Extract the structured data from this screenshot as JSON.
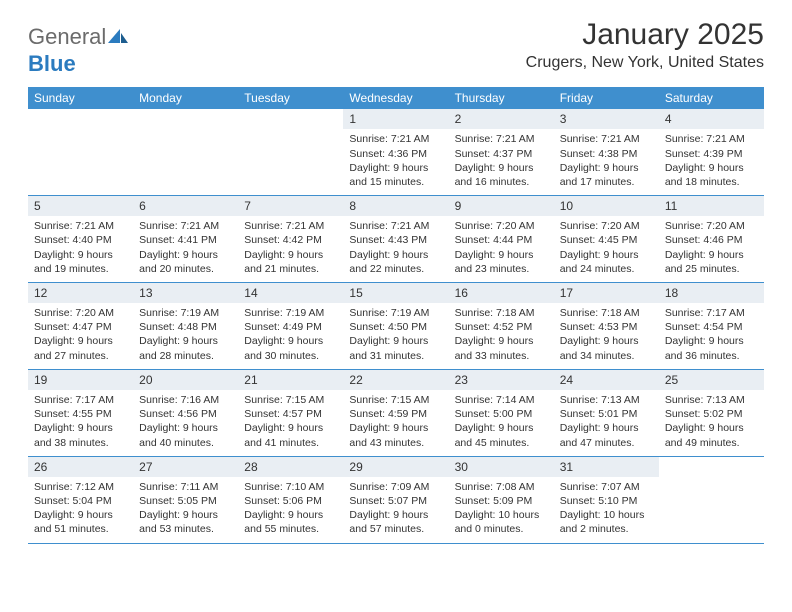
{
  "logo": {
    "general": "General",
    "blue": "Blue"
  },
  "title": "January 2025",
  "location": "Crugers, New York, United States",
  "colors": {
    "header_bg": "#3f8fce",
    "daynum_bg": "#e9eef3",
    "text": "#333333",
    "logo_gray": "#6b6b6b",
    "logo_blue": "#2b7bbf",
    "background": "#ffffff"
  },
  "day_labels": [
    "Sunday",
    "Monday",
    "Tuesday",
    "Wednesday",
    "Thursday",
    "Friday",
    "Saturday"
  ],
  "weeks": [
    [
      null,
      null,
      null,
      {
        "n": "1",
        "sr": "Sunrise: 7:21 AM",
        "ss": "Sunset: 4:36 PM",
        "d1": "Daylight: 9 hours",
        "d2": "and 15 minutes."
      },
      {
        "n": "2",
        "sr": "Sunrise: 7:21 AM",
        "ss": "Sunset: 4:37 PM",
        "d1": "Daylight: 9 hours",
        "d2": "and 16 minutes."
      },
      {
        "n": "3",
        "sr": "Sunrise: 7:21 AM",
        "ss": "Sunset: 4:38 PM",
        "d1": "Daylight: 9 hours",
        "d2": "and 17 minutes."
      },
      {
        "n": "4",
        "sr": "Sunrise: 7:21 AM",
        "ss": "Sunset: 4:39 PM",
        "d1": "Daylight: 9 hours",
        "d2": "and 18 minutes."
      }
    ],
    [
      {
        "n": "5",
        "sr": "Sunrise: 7:21 AM",
        "ss": "Sunset: 4:40 PM",
        "d1": "Daylight: 9 hours",
        "d2": "and 19 minutes."
      },
      {
        "n": "6",
        "sr": "Sunrise: 7:21 AM",
        "ss": "Sunset: 4:41 PM",
        "d1": "Daylight: 9 hours",
        "d2": "and 20 minutes."
      },
      {
        "n": "7",
        "sr": "Sunrise: 7:21 AM",
        "ss": "Sunset: 4:42 PM",
        "d1": "Daylight: 9 hours",
        "d2": "and 21 minutes."
      },
      {
        "n": "8",
        "sr": "Sunrise: 7:21 AM",
        "ss": "Sunset: 4:43 PM",
        "d1": "Daylight: 9 hours",
        "d2": "and 22 minutes."
      },
      {
        "n": "9",
        "sr": "Sunrise: 7:20 AM",
        "ss": "Sunset: 4:44 PM",
        "d1": "Daylight: 9 hours",
        "d2": "and 23 minutes."
      },
      {
        "n": "10",
        "sr": "Sunrise: 7:20 AM",
        "ss": "Sunset: 4:45 PM",
        "d1": "Daylight: 9 hours",
        "d2": "and 24 minutes."
      },
      {
        "n": "11",
        "sr": "Sunrise: 7:20 AM",
        "ss": "Sunset: 4:46 PM",
        "d1": "Daylight: 9 hours",
        "d2": "and 25 minutes."
      }
    ],
    [
      {
        "n": "12",
        "sr": "Sunrise: 7:20 AM",
        "ss": "Sunset: 4:47 PM",
        "d1": "Daylight: 9 hours",
        "d2": "and 27 minutes."
      },
      {
        "n": "13",
        "sr": "Sunrise: 7:19 AM",
        "ss": "Sunset: 4:48 PM",
        "d1": "Daylight: 9 hours",
        "d2": "and 28 minutes."
      },
      {
        "n": "14",
        "sr": "Sunrise: 7:19 AM",
        "ss": "Sunset: 4:49 PM",
        "d1": "Daylight: 9 hours",
        "d2": "and 30 minutes."
      },
      {
        "n": "15",
        "sr": "Sunrise: 7:19 AM",
        "ss": "Sunset: 4:50 PM",
        "d1": "Daylight: 9 hours",
        "d2": "and 31 minutes."
      },
      {
        "n": "16",
        "sr": "Sunrise: 7:18 AM",
        "ss": "Sunset: 4:52 PM",
        "d1": "Daylight: 9 hours",
        "d2": "and 33 minutes."
      },
      {
        "n": "17",
        "sr": "Sunrise: 7:18 AM",
        "ss": "Sunset: 4:53 PM",
        "d1": "Daylight: 9 hours",
        "d2": "and 34 minutes."
      },
      {
        "n": "18",
        "sr": "Sunrise: 7:17 AM",
        "ss": "Sunset: 4:54 PM",
        "d1": "Daylight: 9 hours",
        "d2": "and 36 minutes."
      }
    ],
    [
      {
        "n": "19",
        "sr": "Sunrise: 7:17 AM",
        "ss": "Sunset: 4:55 PM",
        "d1": "Daylight: 9 hours",
        "d2": "and 38 minutes."
      },
      {
        "n": "20",
        "sr": "Sunrise: 7:16 AM",
        "ss": "Sunset: 4:56 PM",
        "d1": "Daylight: 9 hours",
        "d2": "and 40 minutes."
      },
      {
        "n": "21",
        "sr": "Sunrise: 7:15 AM",
        "ss": "Sunset: 4:57 PM",
        "d1": "Daylight: 9 hours",
        "d2": "and 41 minutes."
      },
      {
        "n": "22",
        "sr": "Sunrise: 7:15 AM",
        "ss": "Sunset: 4:59 PM",
        "d1": "Daylight: 9 hours",
        "d2": "and 43 minutes."
      },
      {
        "n": "23",
        "sr": "Sunrise: 7:14 AM",
        "ss": "Sunset: 5:00 PM",
        "d1": "Daylight: 9 hours",
        "d2": "and 45 minutes."
      },
      {
        "n": "24",
        "sr": "Sunrise: 7:13 AM",
        "ss": "Sunset: 5:01 PM",
        "d1": "Daylight: 9 hours",
        "d2": "and 47 minutes."
      },
      {
        "n": "25",
        "sr": "Sunrise: 7:13 AM",
        "ss": "Sunset: 5:02 PM",
        "d1": "Daylight: 9 hours",
        "d2": "and 49 minutes."
      }
    ],
    [
      {
        "n": "26",
        "sr": "Sunrise: 7:12 AM",
        "ss": "Sunset: 5:04 PM",
        "d1": "Daylight: 9 hours",
        "d2": "and 51 minutes."
      },
      {
        "n": "27",
        "sr": "Sunrise: 7:11 AM",
        "ss": "Sunset: 5:05 PM",
        "d1": "Daylight: 9 hours",
        "d2": "and 53 minutes."
      },
      {
        "n": "28",
        "sr": "Sunrise: 7:10 AM",
        "ss": "Sunset: 5:06 PM",
        "d1": "Daylight: 9 hours",
        "d2": "and 55 minutes."
      },
      {
        "n": "29",
        "sr": "Sunrise: 7:09 AM",
        "ss": "Sunset: 5:07 PM",
        "d1": "Daylight: 9 hours",
        "d2": "and 57 minutes."
      },
      {
        "n": "30",
        "sr": "Sunrise: 7:08 AM",
        "ss": "Sunset: 5:09 PM",
        "d1": "Daylight: 10 hours",
        "d2": "and 0 minutes."
      },
      {
        "n": "31",
        "sr": "Sunrise: 7:07 AM",
        "ss": "Sunset: 5:10 PM",
        "d1": "Daylight: 10 hours",
        "d2": "and 2 minutes."
      },
      null
    ]
  ]
}
